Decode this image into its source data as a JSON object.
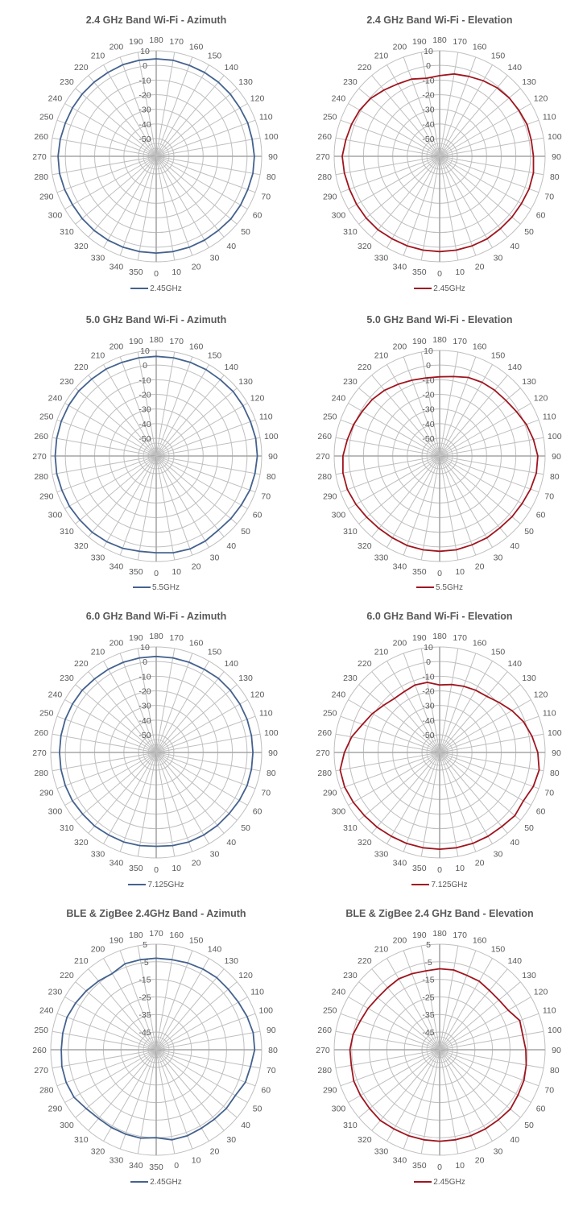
{
  "colors": {
    "azimuth": "#44628F",
    "elevation": "#A0151E",
    "grid": "#BFBFBF",
    "axis": "#A6A6A6",
    "text": "#595959"
  },
  "chart_data": [
    {
      "type": "polar-line",
      "title": "2.4 GHz Band Wi-Fi - Azimuth",
      "series": [
        {
          "name": "2.45GHz",
          "color_key": "azimuth",
          "angles": [
            0,
            10,
            20,
            30,
            40,
            50,
            60,
            70,
            80,
            90,
            100,
            110,
            120,
            130,
            140,
            150,
            160,
            170,
            180,
            190,
            200,
            210,
            220,
            230,
            240,
            250,
            260,
            270,
            280,
            290,
            300,
            310,
            320,
            330,
            340,
            350
          ],
          "values": [
            4,
            4,
            4,
            4,
            4,
            4.5,
            4.5,
            4.5,
            5,
            5,
            4.5,
            4.5,
            4,
            4,
            4,
            4,
            4,
            4.5,
            4.5,
            4.5,
            4.5,
            4,
            4,
            4,
            4,
            4,
            4.5,
            5,
            5,
            4.5,
            4,
            4,
            4,
            4,
            4,
            4
          ]
        }
      ],
      "radial_ticks": [
        10,
        0,
        -10,
        -20,
        -30,
        -40,
        -50
      ],
      "rlim": [
        -50,
        10
      ],
      "angle_ticks": [
        180,
        190,
        200,
        210,
        220,
        230,
        240,
        250,
        260,
        270,
        280,
        290,
        300,
        310,
        320,
        330,
        340,
        350,
        0,
        10,
        20,
        30,
        40,
        50,
        60,
        70,
        80,
        90,
        100,
        110,
        120,
        130,
        140,
        150,
        160,
        170
      ],
      "angle_offset": 0
    },
    {
      "type": "polar-line",
      "title": "2.4 GHz Band Wi-Fi - Elevation",
      "series": [
        {
          "name": "2.45GHz",
          "color_key": "elevation",
          "angles": [
            0,
            10,
            20,
            30,
            40,
            50,
            60,
            70,
            80,
            90,
            100,
            110,
            120,
            130,
            140,
            150,
            160,
            170,
            180,
            190,
            200,
            210,
            220,
            230,
            240,
            250,
            260,
            270,
            280,
            290,
            300,
            310,
            320,
            330,
            340,
            350
          ],
          "values": [
            3,
            3,
            3,
            3,
            2.5,
            2.5,
            2.5,
            3,
            3,
            2,
            1.5,
            1.5,
            0.5,
            0,
            -1,
            -2.5,
            -4,
            -5,
            -7,
            -8,
            -6,
            -5,
            -3,
            -0.5,
            1,
            2,
            3,
            4.5,
            4,
            3.5,
            3.5,
            3.5,
            3.5,
            3,
            3,
            3
          ]
        }
      ],
      "radial_ticks": [
        10,
        0,
        -10,
        -20,
        -30,
        -40,
        -50
      ],
      "rlim": [
        -50,
        10
      ],
      "angle_ticks": [
        180,
        190,
        200,
        210,
        220,
        230,
        240,
        250,
        260,
        270,
        280,
        290,
        300,
        310,
        320,
        330,
        340,
        350,
        0,
        10,
        20,
        30,
        40,
        50,
        60,
        70,
        80,
        90,
        100,
        110,
        120,
        130,
        140,
        150,
        160,
        170
      ],
      "angle_offset": 0
    },
    {
      "type": "polar-line",
      "title": "5.0 GHz Band Wi-Fi - Azimuth",
      "series": [
        {
          "name": "5.5GHz",
          "color_key": "azimuth",
          "angles": [
            0,
            10,
            20,
            30,
            40,
            50,
            60,
            70,
            80,
            90,
            100,
            110,
            120,
            130,
            140,
            150,
            160,
            170,
            180,
            190,
            200,
            210,
            220,
            230,
            240,
            250,
            260,
            270,
            280,
            290,
            300,
            310,
            320,
            330,
            340,
            350
          ],
          "values": [
            4,
            5,
            5.5,
            5,
            4,
            4.5,
            5,
            6,
            6.5,
            7,
            7,
            6.5,
            6.5,
            6.5,
            6,
            6,
            6,
            6,
            6,
            6,
            6,
            6.5,
            6.5,
            7,
            7,
            7,
            7,
            7,
            7,
            6.5,
            6.5,
            6,
            6,
            5.5,
            5,
            4
          ]
        }
      ],
      "radial_ticks": [
        10,
        0,
        -10,
        -20,
        -30,
        -40,
        -50
      ],
      "rlim": [
        -50,
        10
      ],
      "angle_ticks": [
        180,
        190,
        200,
        210,
        220,
        230,
        240,
        250,
        260,
        270,
        280,
        290,
        300,
        310,
        320,
        330,
        340,
        350,
        0,
        10,
        20,
        30,
        40,
        50,
        60,
        70,
        80,
        90,
        100,
        110,
        120,
        130,
        140,
        150,
        160,
        170
      ],
      "angle_offset": 0
    },
    {
      "type": "polar-line",
      "title": "5.0 GHz Band Wi-Fi - Elevation",
      "series": [
        {
          "name": "5.5GHz",
          "color_key": "elevation",
          "angles": [
            0,
            10,
            20,
            30,
            40,
            50,
            60,
            70,
            80,
            90,
            100,
            110,
            120,
            130,
            140,
            150,
            160,
            170,
            180,
            190,
            200,
            210,
            220,
            230,
            240,
            250,
            260,
            270,
            280,
            290,
            300,
            310,
            320,
            330,
            340,
            350
          ],
          "values": [
            3,
            3,
            2.5,
            2.5,
            2,
            2.5,
            3,
            4,
            5,
            5,
            3,
            1,
            -1.5,
            -3,
            -3.5,
            -4,
            -5,
            -7,
            -8,
            -8,
            -7,
            -5.5,
            -3.5,
            -2,
            -1,
            0.5,
            2,
            4,
            5,
            5,
            4,
            3,
            2.5,
            2.5,
            3,
            3
          ]
        }
      ],
      "radial_ticks": [
        10,
        0,
        -10,
        -20,
        -30,
        -40,
        -50
      ],
      "rlim": [
        -50,
        10
      ],
      "angle_ticks": [
        180,
        190,
        200,
        210,
        220,
        230,
        240,
        250,
        260,
        270,
        280,
        290,
        300,
        310,
        320,
        330,
        340,
        350,
        0,
        10,
        20,
        30,
        40,
        50,
        60,
        70,
        80,
        90,
        100,
        110,
        120,
        130,
        140,
        150,
        160,
        170
      ],
      "angle_offset": 0
    },
    {
      "type": "polar-line",
      "title": "6.0 GHz Band Wi-Fi - Azimuth",
      "series": [
        {
          "name": "7.125GHz",
          "color_key": "azimuth",
          "angles": [
            0,
            10,
            20,
            30,
            40,
            50,
            60,
            70,
            80,
            90,
            100,
            110,
            120,
            130,
            140,
            150,
            160,
            170,
            180,
            190,
            200,
            210,
            220,
            230,
            240,
            250,
            260,
            270,
            280,
            290,
            300,
            310,
            320,
            330,
            340,
            350
          ],
          "values": [
            2,
            2.5,
            3,
            3,
            3,
            3,
            3.5,
            4,
            4,
            4,
            4,
            4,
            4,
            4,
            4,
            3.5,
            3.5,
            3.5,
            3.5,
            3.5,
            3.5,
            3.5,
            3.5,
            4,
            4,
            4,
            4,
            4,
            4,
            4,
            4,
            3.5,
            3.5,
            3,
            3,
            2.5
          ]
        }
      ],
      "radial_ticks": [
        10,
        0,
        -10,
        -20,
        -30,
        -40,
        -50
      ],
      "rlim": [
        -50,
        10
      ],
      "angle_ticks": [
        180,
        190,
        200,
        210,
        220,
        230,
        240,
        250,
        260,
        270,
        280,
        290,
        300,
        310,
        320,
        330,
        340,
        350,
        0,
        10,
        20,
        30,
        40,
        50,
        60,
        70,
        80,
        90,
        100,
        110,
        120,
        130,
        140,
        150,
        160,
        170
      ],
      "angle_offset": 0
    },
    {
      "type": "polar-line",
      "title": "6.0 GHz Band Wi-Fi - Elevation",
      "series": [
        {
          "name": "7.125GHz",
          "color_key": "elevation",
          "angles": [
            0,
            10,
            20,
            30,
            40,
            50,
            60,
            70,
            80,
            90,
            100,
            110,
            120,
            130,
            140,
            150,
            160,
            170,
            180,
            190,
            200,
            210,
            220,
            230,
            240,
            250,
            260,
            270,
            280,
            290,
            300,
            310,
            320,
            330,
            340,
            350
          ],
          "values": [
            4,
            4,
            4,
            4,
            4,
            5,
            4,
            6,
            7,
            5,
            2,
            -1,
            -5,
            -9,
            -12,
            -13,
            -14,
            -15,
            -16,
            -13.5,
            -13,
            -14,
            -14,
            -12,
            -9,
            -6,
            -1,
            3,
            7,
            7,
            6,
            5,
            4.5,
            4,
            4,
            4
          ]
        }
      ],
      "radial_ticks": [
        10,
        0,
        -10,
        -20,
        -30,
        -40,
        -50
      ],
      "rlim": [
        -50,
        10
      ],
      "angle_ticks": [
        180,
        190,
        200,
        210,
        220,
        230,
        240,
        250,
        260,
        270,
        280,
        290,
        300,
        310,
        320,
        330,
        340,
        350,
        0,
        10,
        20,
        30,
        40,
        50,
        60,
        70,
        80,
        90,
        100,
        110,
        120,
        130,
        140,
        150,
        160,
        170
      ],
      "angle_offset": 0
    },
    {
      "type": "polar-line",
      "title": "BLE & ZigBee 2.4GHz Band - Azimuth",
      "series": [
        {
          "name": "2.45GHz",
          "color_key": "azimuth",
          "angles": [
            0,
            10,
            20,
            30,
            40,
            50,
            60,
            70,
            80,
            90,
            100,
            110,
            120,
            130,
            140,
            150,
            160,
            170,
            180,
            190,
            200,
            210,
            220,
            230,
            240,
            250,
            260,
            270,
            280,
            290,
            300,
            310,
            320,
            330,
            340,
            350
          ],
          "values": [
            -3,
            -3,
            -3.5,
            -3.5,
            -3,
            -3,
            -1,
            -0.5,
            1,
            1,
            0,
            -1,
            -1.5,
            -1.5,
            -2,
            -2.5,
            -3,
            -3,
            -3,
            -3,
            -5,
            -4,
            -3,
            -2,
            -1,
            -1,
            -1,
            -0.5,
            -0.5,
            -1,
            -3,
            -4,
            -4,
            -4,
            -4,
            -5
          ]
        }
      ],
      "radial_ticks": [
        5,
        -5,
        -15,
        -25,
        -35,
        -45
      ],
      "rlim": [
        -45,
        5
      ],
      "angle_ticks": [
        170,
        180,
        190,
        200,
        210,
        220,
        230,
        240,
        250,
        260,
        270,
        280,
        290,
        300,
        310,
        320,
        330,
        340,
        350,
        0,
        10,
        20,
        30,
        40,
        50,
        60,
        70,
        80,
        90,
        100,
        110,
        120,
        130,
        140,
        150,
        160
      ],
      "angle_offset": -10
    },
    {
      "type": "polar-line",
      "title": "BLE & ZigBee 2.4 GHz Band - Elevation",
      "series": [
        {
          "name": "2.45GHz",
          "color_key": "elevation",
          "angles": [
            0,
            10,
            20,
            30,
            40,
            50,
            60,
            70,
            80,
            90,
            100,
            110,
            120,
            130,
            140,
            150,
            160,
            170,
            180,
            190,
            200,
            210,
            220,
            230,
            240,
            250,
            260,
            270,
            280,
            290,
            300,
            310,
            320,
            330,
            340,
            350
          ],
          "values": [
            -3,
            -3,
            -3,
            -3,
            -3,
            -2.5,
            -3.5,
            -4,
            -5,
            -6,
            -7,
            -6.5,
            -10,
            -11,
            -11,
            -10,
            -10,
            -9,
            -9,
            -9.5,
            -9,
            -8.5,
            -9,
            -9,
            -8,
            -7,
            -5,
            -4,
            -4,
            -3,
            -3,
            -3,
            -2.5,
            -3,
            -3,
            -3
          ]
        }
      ],
      "radial_ticks": [
        5,
        -5,
        -15,
        -25,
        -35,
        -45
      ],
      "rlim": [
        -45,
        5
      ],
      "angle_ticks": [
        180,
        190,
        200,
        210,
        220,
        230,
        240,
        250,
        260,
        270,
        280,
        290,
        300,
        310,
        320,
        330,
        340,
        350,
        0,
        10,
        20,
        30,
        40,
        50,
        60,
        70,
        80,
        90,
        100,
        110,
        120,
        130,
        140,
        150,
        160,
        170
      ],
      "angle_offset": 0
    }
  ]
}
